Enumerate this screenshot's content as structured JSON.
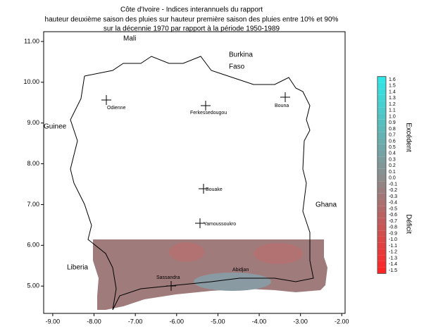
{
  "title": [
    "Côte d'Ivoire - Indices  interannuels du rapport",
    "hauteur deuxième saison des pluies sur hauteur première saison des pluies entre 10% et 90%",
    "sur la décennie 1970 par rapport à la période 1950-1989"
  ],
  "axes": {
    "xlim": [
      -9.22,
      -1.92
    ],
    "ylim": [
      4.33,
      11.24
    ],
    "xticks": [
      {
        "value": -9,
        "label": "-9.00"
      },
      {
        "value": -8,
        "label": "-8.00"
      },
      {
        "value": -7,
        "label": "-7.00"
      },
      {
        "value": -6,
        "label": "-6.00"
      },
      {
        "value": -5,
        "label": "-5.00"
      },
      {
        "value": -4,
        "label": "-4.00"
      },
      {
        "value": -3,
        "label": "-3.00"
      },
      {
        "value": -2,
        "label": "-2.00"
      }
    ],
    "yticks": [
      {
        "value": 5,
        "label": "5.00"
      },
      {
        "value": 6,
        "label": "6.00"
      },
      {
        "value": 7,
        "label": "7.00"
      },
      {
        "value": 8,
        "label": "8.00"
      },
      {
        "value": 9,
        "label": "9.00"
      },
      {
        "value": 10,
        "label": "10.00"
      },
      {
        "value": 11,
        "label": "11.00"
      }
    ]
  },
  "countries": [
    "Mali",
    "Burkina",
    "Faso",
    "Guinee",
    "Ghana",
    "Liberia"
  ],
  "cities": [
    "Odienne",
    "Ferkessedougou",
    "Bouna",
    "Bouake",
    "Yamoussoukro",
    "Sassandra",
    "Abidjan"
  ],
  "colorbar": {
    "ticks": [
      1.6,
      1.5,
      1.4,
      1.3,
      1.2,
      1.1,
      {
        "value": 1,
        "label": "1.0"
      },
      0.9,
      0.8,
      0.7,
      0.6,
      0.5,
      0.4,
      0.3,
      0.2,
      0.1,
      {
        "value": 0,
        "label": "0.0"
      },
      -0.1,
      -0.2,
      -0.3,
      -0.4,
      -0.5,
      -0.6,
      -0.7,
      -0.8,
      -0.9,
      {
        "value": -1,
        "label": "-1.0"
      },
      -1.1,
      -1.2,
      -1.3,
      -1.4,
      -1.5
    ],
    "high_color": "#30e6e6",
    "mid_color": "#8c8c8c",
    "low_color": "#ff2424",
    "labels": [
      "Excédent",
      "Déficit"
    ]
  }
}
